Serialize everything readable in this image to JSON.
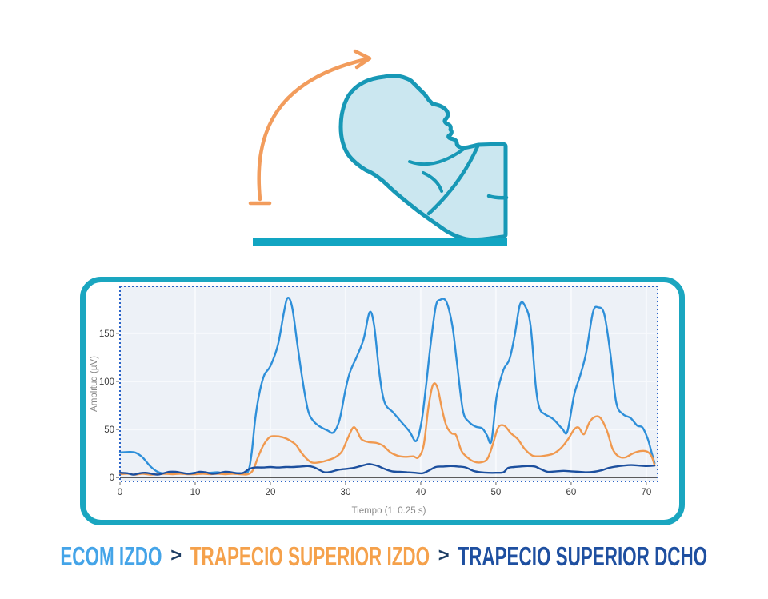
{
  "illustration": {
    "name": "head-neck-extension-exercise",
    "colors": {
      "outline": "#1798b6",
      "fill": "#cbe7f0",
      "arrow": "#f29c5c",
      "ground": "#12a5c2"
    }
  },
  "chart_data": {
    "type": "line",
    "title": "",
    "xlabel": "Tiempo (1: 0.25 s)",
    "ylabel": "Amplitud (µV)",
    "xlim": [
      0,
      71.5
    ],
    "ylim": [
      -4,
      199
    ],
    "xticks": [
      0,
      10,
      20,
      30,
      40,
      50,
      60,
      70
    ],
    "yticks": [
      0,
      50,
      100,
      150
    ],
    "grid": true,
    "legend_position": "none",
    "plot_bg": "#edf1f7",
    "grid_color": "#f7f9fc",
    "border_style": "dotted",
    "border_color": "#2a63c8",
    "axis_line_color": "#454545",
    "series": [
      {
        "name": "ECOM IZDO",
        "color": "#2e8fd9",
        "points": [
          [
            0,
            26
          ],
          [
            1,
            26.5
          ],
          [
            2,
            26
          ],
          [
            3,
            21
          ],
          [
            4,
            12
          ],
          [
            5,
            6
          ],
          [
            6,
            4
          ],
          [
            7,
            5
          ],
          [
            8,
            4.5
          ],
          [
            9,
            4
          ],
          [
            10,
            5
          ],
          [
            11,
            4.5
          ],
          [
            12,
            5
          ],
          [
            13,
            5.5
          ],
          [
            14,
            4
          ],
          [
            15,
            5
          ],
          [
            16,
            4.5
          ],
          [
            17,
            6
          ],
          [
            17.5,
            25
          ],
          [
            18,
            62
          ],
          [
            18.6,
            90
          ],
          [
            19.2,
            107
          ],
          [
            20,
            116
          ],
          [
            21,
            138
          ],
          [
            21.8,
            172
          ],
          [
            22.3,
            187
          ],
          [
            22.9,
            177
          ],
          [
            23.6,
            138
          ],
          [
            24.3,
            100
          ],
          [
            25,
            70
          ],
          [
            25.7,
            59
          ],
          [
            26.6,
            53
          ],
          [
            27.6,
            49
          ],
          [
            28.4,
            47
          ],
          [
            29.2,
            60
          ],
          [
            30,
            92
          ],
          [
            30.6,
            110
          ],
          [
            31.5,
            126
          ],
          [
            32.4,
            144
          ],
          [
            33.2,
            172
          ],
          [
            33.8,
            158
          ],
          [
            34.5,
            108
          ],
          [
            35.2,
            78
          ],
          [
            36.3,
            68
          ],
          [
            37.4,
            58
          ],
          [
            38.5,
            48
          ],
          [
            39.4,
            38
          ],
          [
            40.1,
            58
          ],
          [
            40.7,
            95
          ],
          [
            41.3,
            138
          ],
          [
            42,
            178
          ],
          [
            42.6,
            185
          ],
          [
            43.4,
            183
          ],
          [
            44.2,
            158
          ],
          [
            44.8,
            120
          ],
          [
            45.6,
            70
          ],
          [
            46.4,
            58
          ],
          [
            47.3,
            53
          ],
          [
            48.2,
            51
          ],
          [
            48.8,
            44
          ],
          [
            49.4,
            38
          ],
          [
            50.1,
            85
          ],
          [
            51,
            112
          ],
          [
            51.8,
            123
          ],
          [
            52.5,
            148
          ],
          [
            53.2,
            180
          ],
          [
            53.9,
            178
          ],
          [
            54.6,
            158
          ],
          [
            55.3,
            95
          ],
          [
            55.8,
            72
          ],
          [
            56.5,
            66
          ],
          [
            57.6,
            61
          ],
          [
            58.8,
            51
          ],
          [
            59.5,
            48
          ],
          [
            60.4,
            86
          ],
          [
            61.2,
            106
          ],
          [
            62,
            130
          ],
          [
            62.9,
            172
          ],
          [
            63.6,
            177
          ],
          [
            64.4,
            170
          ],
          [
            65.2,
            130
          ],
          [
            66,
            78
          ],
          [
            66.9,
            66
          ],
          [
            67.9,
            62
          ],
          [
            68.8,
            54
          ],
          [
            69.5,
            52
          ],
          [
            70.2,
            40
          ],
          [
            70.7,
            26
          ],
          [
            71.1,
            15
          ]
        ]
      },
      {
        "name": "TRAPECIO SUPERIOR IZDO",
        "color": "#f0994f",
        "points": [
          [
            0,
            3.5
          ],
          [
            1,
            4
          ],
          [
            2,
            3
          ],
          [
            3,
            4
          ],
          [
            4,
            3
          ],
          [
            5,
            3.5
          ],
          [
            6,
            4
          ],
          [
            7,
            3.5
          ],
          [
            8,
            4
          ],
          [
            9,
            3.5
          ],
          [
            10,
            3.5
          ],
          [
            11,
            4
          ],
          [
            12,
            3.5
          ],
          [
            13,
            4
          ],
          [
            14,
            3.5
          ],
          [
            15,
            4
          ],
          [
            16,
            3.5
          ],
          [
            17,
            3.5
          ],
          [
            17.7,
            8
          ],
          [
            18.4,
            22
          ],
          [
            19.1,
            34
          ],
          [
            19.9,
            42
          ],
          [
            20.6,
            43
          ],
          [
            21.6,
            42
          ],
          [
            22.5,
            39
          ],
          [
            23.4,
            34
          ],
          [
            24.1,
            26
          ],
          [
            24.9,
            19
          ],
          [
            25.6,
            15.5
          ],
          [
            26.6,
            16
          ],
          [
            27.6,
            18
          ],
          [
            28.6,
            21
          ],
          [
            29.5,
            27
          ],
          [
            30.3,
            41
          ],
          [
            31,
            52
          ],
          [
            31.5,
            49
          ],
          [
            32.1,
            40
          ],
          [
            33,
            37
          ],
          [
            34.1,
            36
          ],
          [
            35,
            33
          ],
          [
            36,
            26
          ],
          [
            37,
            22.5
          ],
          [
            38,
            21.5
          ],
          [
            39,
            22
          ],
          [
            39.7,
            21
          ],
          [
            40.4,
            34
          ],
          [
            41,
            72
          ],
          [
            41.6,
            96
          ],
          [
            42.2,
            94
          ],
          [
            42.8,
            72
          ],
          [
            43.4,
            54
          ],
          [
            44.1,
            46
          ],
          [
            44.7,
            44
          ],
          [
            45.4,
            28
          ],
          [
            46.2,
            21
          ],
          [
            47.1,
            16.5
          ],
          [
            48.1,
            16
          ],
          [
            48.9,
            20
          ],
          [
            49.6,
            35
          ],
          [
            50.3,
            52
          ],
          [
            51.1,
            54
          ],
          [
            52,
            46
          ],
          [
            52.9,
            40
          ],
          [
            53.8,
            30
          ],
          [
            54.8,
            23
          ],
          [
            55.7,
            22
          ],
          [
            56.7,
            23
          ],
          [
            57.7,
            25
          ],
          [
            58.7,
            31
          ],
          [
            59.6,
            40
          ],
          [
            60.4,
            50
          ],
          [
            61,
            52
          ],
          [
            61.7,
            45
          ],
          [
            62.4,
            57
          ],
          [
            63.1,
            63
          ],
          [
            63.9,
            62
          ],
          [
            64.8,
            48
          ],
          [
            65.5,
            30
          ],
          [
            66.3,
            22
          ],
          [
            67.2,
            21
          ],
          [
            68.2,
            25
          ],
          [
            69.2,
            27.5
          ],
          [
            70.1,
            27
          ],
          [
            70.7,
            22
          ],
          [
            71.1,
            13
          ]
        ]
      },
      {
        "name": "TRAPECIO SUPERIOR DCHO",
        "color": "#1c4f9e",
        "points": [
          [
            0,
            5
          ],
          [
            1,
            4.5
          ],
          [
            1.8,
            3
          ],
          [
            2.6,
            4.5
          ],
          [
            3.4,
            5
          ],
          [
            4.2,
            4
          ],
          [
            5,
            3
          ],
          [
            5.8,
            4.5
          ],
          [
            6.6,
            6
          ],
          [
            7.4,
            6
          ],
          [
            8.2,
            5
          ],
          [
            9,
            4
          ],
          [
            9.8,
            4.5
          ],
          [
            10.6,
            6
          ],
          [
            11.4,
            5.5
          ],
          [
            12.2,
            4
          ],
          [
            13,
            4.5
          ],
          [
            14,
            6
          ],
          [
            14.8,
            5.5
          ],
          [
            15.6,
            4.5
          ],
          [
            16.4,
            5
          ],
          [
            17.2,
            9
          ],
          [
            18,
            10.5
          ],
          [
            19,
            10.5
          ],
          [
            20,
            11
          ],
          [
            21,
            10.5
          ],
          [
            22,
            11
          ],
          [
            23,
            11
          ],
          [
            24,
            11.5
          ],
          [
            25,
            12
          ],
          [
            25.7,
            11
          ],
          [
            26.4,
            8.5
          ],
          [
            27.2,
            5.5
          ],
          [
            28,
            6
          ],
          [
            29,
            8
          ],
          [
            30,
            9
          ],
          [
            31,
            10
          ],
          [
            32,
            12
          ],
          [
            33,
            14
          ],
          [
            33.6,
            13.5
          ],
          [
            34.3,
            12
          ],
          [
            35.2,
            9
          ],
          [
            36.2,
            6.5
          ],
          [
            37.2,
            6
          ],
          [
            38.2,
            5.5
          ],
          [
            39.2,
            5
          ],
          [
            40.2,
            4.5
          ],
          [
            41,
            7
          ],
          [
            42,
            11
          ],
          [
            43,
            11.5
          ],
          [
            44,
            12
          ],
          [
            45,
            11.5
          ],
          [
            46,
            10.5
          ],
          [
            47,
            7
          ],
          [
            48,
            5.5
          ],
          [
            49,
            5
          ],
          [
            50,
            5
          ],
          [
            51,
            5.5
          ],
          [
            51.6,
            10
          ],
          [
            52.4,
            11
          ],
          [
            53.2,
            11.5
          ],
          [
            54.2,
            12
          ],
          [
            55.2,
            11.5
          ],
          [
            55.9,
            9
          ],
          [
            56.9,
            6
          ],
          [
            58,
            6.5
          ],
          [
            59,
            7
          ],
          [
            60,
            6.5
          ],
          [
            61,
            6
          ],
          [
            62,
            5.5
          ],
          [
            63,
            6
          ],
          [
            64,
            7.5
          ],
          [
            65,
            10
          ],
          [
            66,
            11.5
          ],
          [
            67,
            12.5
          ],
          [
            68,
            13
          ],
          [
            69,
            12.5
          ],
          [
            70,
            12
          ],
          [
            71.1,
            12.5
          ]
        ]
      }
    ]
  },
  "legend": {
    "separator": ">",
    "separator_color": "#1b3c63",
    "items": [
      {
        "label": "ECOM IZDO",
        "color": "#44a4e8"
      },
      {
        "label": "TRAPECIO SUPERIOR IZDO",
        "color": "#f5a14b"
      },
      {
        "label": "TRAPECIO SUPERIOR DCHO",
        "color": "#1e4fa0"
      }
    ]
  }
}
